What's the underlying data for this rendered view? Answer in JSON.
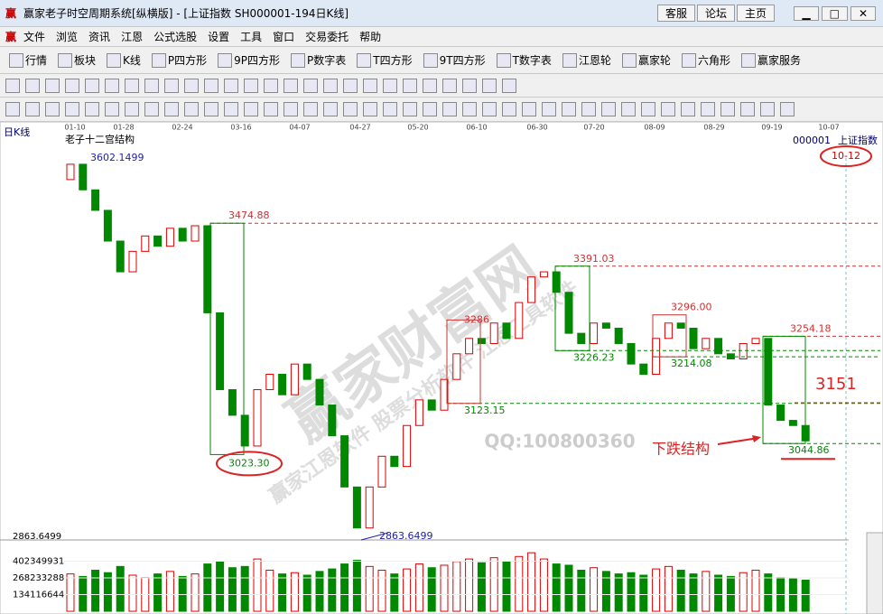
{
  "window": {
    "title": "赢家老子时空周期系统[纵横版] - [上证指数  SH000001-194日K线]",
    "buttons": [
      "客服",
      "论坛",
      "主页"
    ]
  },
  "menu": [
    "文件",
    "浏览",
    "资讯",
    "江恩",
    "公式选股",
    "设置",
    "工具",
    "窗口",
    "交易委托",
    "帮助"
  ],
  "toolbar": [
    "行情",
    "板块",
    "K线",
    "P四方形",
    "9P四方形",
    "P数字表",
    "T四方形",
    "9T四方形",
    "T数字表",
    "江恩轮",
    "赢家轮",
    "六角形",
    "赢家服务"
  ],
  "chart": {
    "period": "日K线",
    "study": "老子十二宫结构",
    "code": "000001",
    "index_name": "上证指数",
    "date_marker": "10-12",
    "dates": [
      "01-10",
      "01-28",
      "02-24",
      "03-16",
      "04-07",
      "04-27",
      "05-20",
      "06-10",
      "06-30",
      "07-20",
      "08-09",
      "08-29",
      "09-19",
      "10-07"
    ],
    "ylim": [
      2863.6499,
      3602.1499
    ],
    "open": [
      3560,
      3590,
      3540,
      3500,
      3440,
      3380,
      3420,
      3450,
      3430,
      3465,
      3440,
      3470,
      3300,
      3150,
      3100,
      3040,
      3150,
      3180,
      3140,
      3200,
      3170,
      3120,
      3060,
      2960,
      2880,
      2960,
      3020,
      3000,
      3080,
      3130,
      3110,
      3170,
      3220,
      3250,
      3240,
      3280,
      3250,
      3320,
      3370,
      3380,
      3340,
      3260,
      3240,
      3280,
      3270,
      3240,
      3200,
      3180,
      3250,
      3280,
      3270,
      3230,
      3250,
      3220,
      3210,
      3240,
      3250,
      3120,
      3090,
      3080
    ],
    "close": [
      3590,
      3540,
      3500,
      3440,
      3380,
      3420,
      3450,
      3430,
      3465,
      3440,
      3470,
      3300,
      3150,
      3100,
      3040,
      3150,
      3180,
      3140,
      3200,
      3170,
      3120,
      3060,
      2960,
      2880,
      2960,
      3020,
      3000,
      3080,
      3130,
      3110,
      3170,
      3220,
      3250,
      3240,
      3280,
      3250,
      3320,
      3370,
      3380,
      3340,
      3260,
      3240,
      3280,
      3270,
      3240,
      3200,
      3180,
      3250,
      3280,
      3270,
      3230,
      3250,
      3220,
      3210,
      3240,
      3250,
      3120,
      3090,
      3080,
      3050
    ],
    "levels": [
      3602.1499,
      3474.88,
      3391.03,
      3286,
      {
        "value": 3296,
        "label": "3296.00"
      },
      3254.18,
      3226.23,
      3214.08,
      3123.15,
      {
        "value": 3023.3,
        "label": "3023.30"
      },
      3044.86,
      2863.6499
    ],
    "level_axis_label": 2863.6499,
    "target": 3151,
    "annotation": "下跌结构",
    "watermark": "赢家财富网",
    "watermark2": "赢家江恩软件 股票分析软件 江恩工具软件",
    "qq": "QQ:100800360",
    "volume": [
      300000000,
      280000000,
      330000000,
      310000000,
      360000000,
      290000000,
      270000000,
      300000000,
      320000000,
      280000000,
      300000000,
      380000000,
      400000000,
      350000000,
      360000000,
      420000000,
      330000000,
      300000000,
      310000000,
      290000000,
      320000000,
      340000000,
      380000000,
      410000000,
      360000000,
      330000000,
      300000000,
      340000000,
      380000000,
      350000000,
      370000000,
      400000000,
      420000000,
      390000000,
      430000000,
      400000000,
      440000000,
      470000000,
      420000000,
      380000000,
      370000000,
      330000000,
      350000000,
      320000000,
      300000000,
      310000000,
      290000000,
      340000000,
      360000000,
      330000000,
      300000000,
      320000000,
      290000000,
      280000000,
      310000000,
      330000000,
      300000000,
      270000000,
      260000000,
      250000000
    ],
    "volume_ticks": [
      402349931,
      268233288,
      134116644
    ]
  }
}
